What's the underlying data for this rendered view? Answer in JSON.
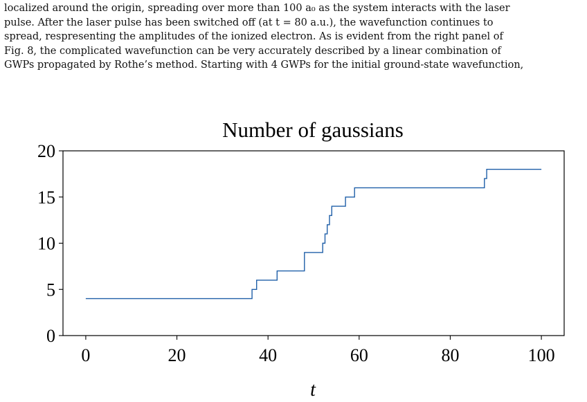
{
  "paragraph": {
    "lines": [
      "localized around the origin, spreading over more than 100 a₀ as the system interacts with the laser",
      "pulse. After the laser pulse has been switched off (at t = 80 a.u.), the wavefunction continues to",
      "spread, respresenting the amplitudes of the ionized electron. As is evident from the right panel of",
      "Fig. 8, the complicated wavefunction can be very accurately described by a linear combination of",
      "GWPs propagated by Rothe’s method. Starting with 4 GWPs for the initial ground-state wavefunction,"
    ]
  },
  "chart_data": {
    "type": "line",
    "title": "Number of gaussians",
    "xlabel": "t",
    "ylabel": "",
    "xlim": [
      -5,
      105
    ],
    "ylim": [
      0,
      20
    ],
    "xticks": [
      0,
      20,
      40,
      60,
      80,
      100
    ],
    "yticks": [
      0,
      5,
      10,
      15,
      20
    ],
    "grid": false,
    "series": [
      {
        "color": "#1f5fa8",
        "step": "post",
        "x": [
          0,
          36.5,
          37.5,
          42,
          48,
          52,
          52.5,
          53,
          53.5,
          54,
          57,
          59,
          87.5,
          88,
          100
        ],
        "y": [
          4,
          5,
          6,
          7,
          9,
          10,
          11,
          12,
          13,
          14,
          15,
          16,
          17,
          18,
          18
        ]
      }
    ]
  }
}
